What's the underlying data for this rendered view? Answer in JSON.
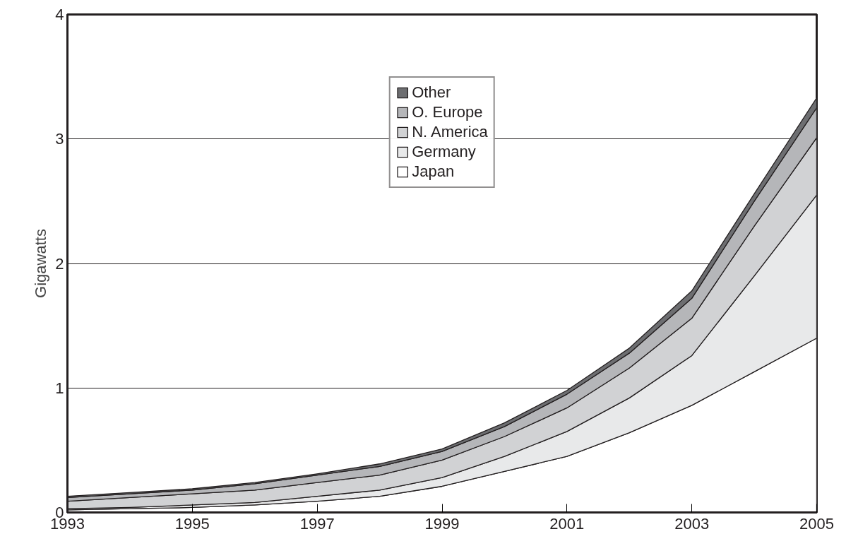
{
  "chart_data": {
    "type": "area",
    "stacked": true,
    "ylabel": "Gigawatts",
    "x": [
      1993,
      1994,
      1995,
      1996,
      1997,
      1998,
      1999,
      2000,
      2001,
      2002,
      2003,
      2004,
      2005
    ],
    "series": [
      {
        "name": "Japan",
        "color": "#ffffff",
        "values": [
          0.02,
          0.03,
          0.04,
          0.06,
          0.09,
          0.13,
          0.21,
          0.33,
          0.45,
          0.64,
          0.86,
          1.13,
          1.4
        ]
      },
      {
        "name": "Germany",
        "color": "#e8e9ea",
        "values": [
          0.01,
          0.01,
          0.02,
          0.02,
          0.04,
          0.05,
          0.07,
          0.12,
          0.2,
          0.28,
          0.4,
          0.77,
          1.15
        ]
      },
      {
        "name": "N. America",
        "color": "#d1d2d4",
        "values": [
          0.06,
          0.08,
          0.09,
          0.1,
          0.11,
          0.12,
          0.14,
          0.16,
          0.19,
          0.24,
          0.3,
          0.4,
          0.46
        ]
      },
      {
        "name": "O. Europe",
        "color": "#b5b6b9",
        "values": [
          0.03,
          0.03,
          0.03,
          0.05,
          0.06,
          0.07,
          0.07,
          0.08,
          0.11,
          0.12,
          0.16,
          0.2,
          0.24
        ]
      },
      {
        "name": "Other",
        "color": "#6d6e71",
        "values": [
          0.01,
          0.01,
          0.01,
          0.01,
          0.01,
          0.02,
          0.02,
          0.03,
          0.03,
          0.04,
          0.06,
          0.06,
          0.08
        ]
      }
    ],
    "xlim": [
      1993,
      2005
    ],
    "xticks": [
      1993,
      1995,
      1997,
      1999,
      2001,
      2003,
      2005
    ],
    "ylim": [
      0,
      4
    ],
    "yticks": [
      0,
      1,
      2,
      3,
      4
    ],
    "grid": "y",
    "legend": "top"
  }
}
